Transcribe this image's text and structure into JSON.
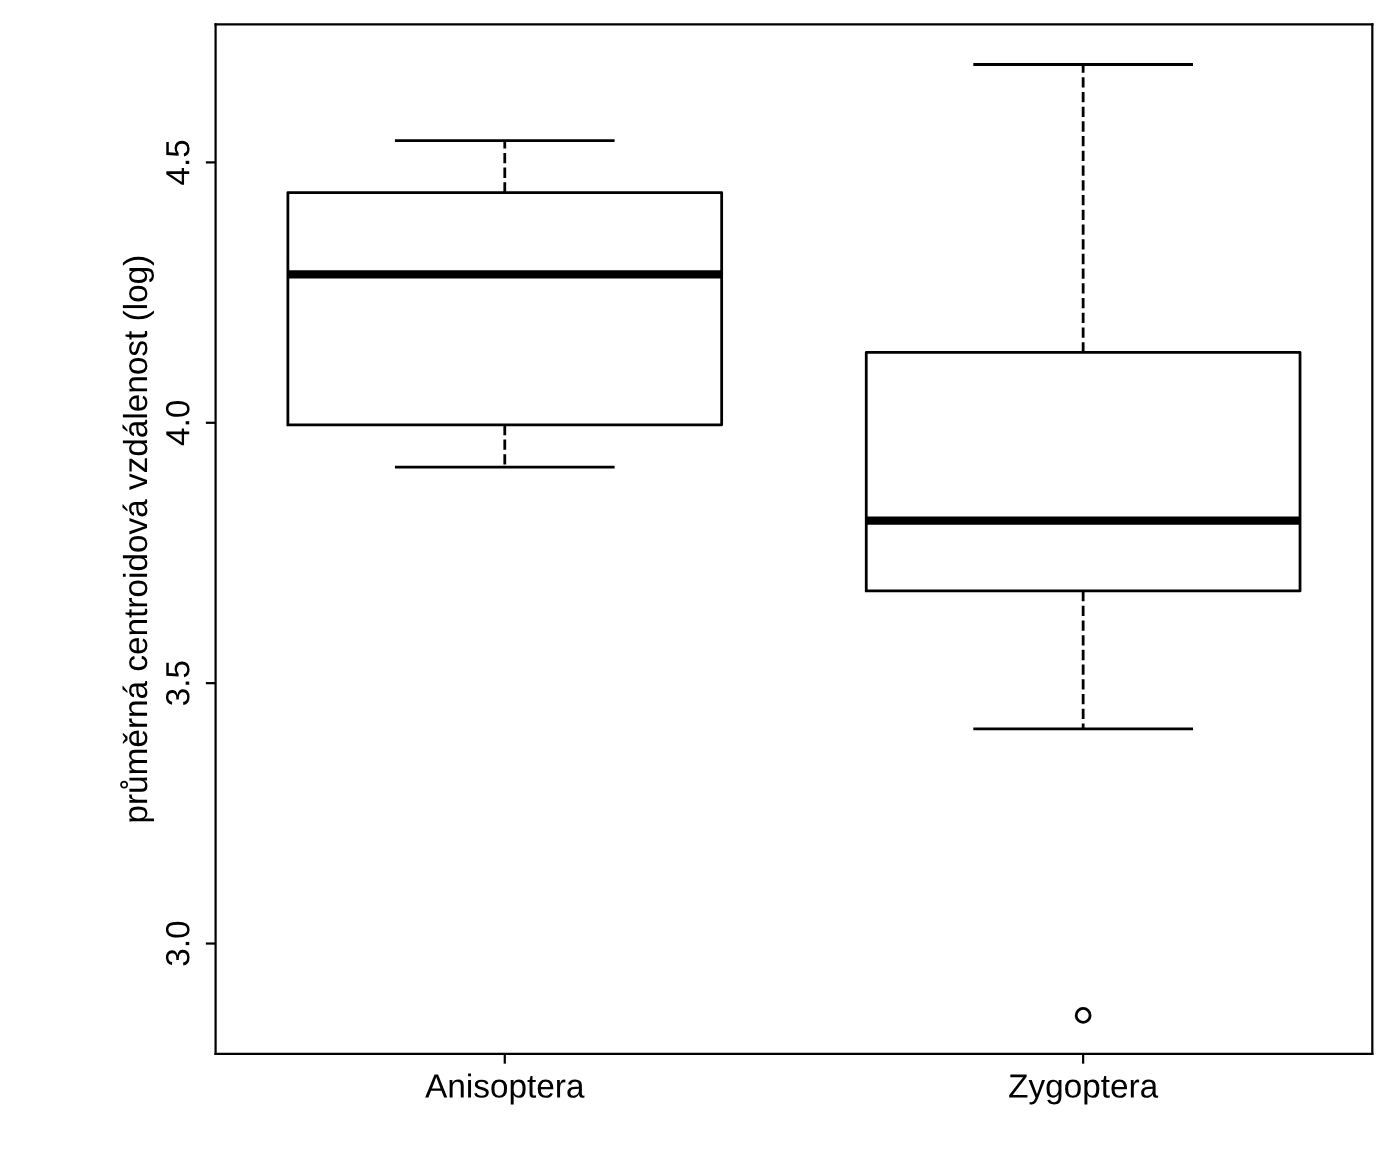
{
  "chart_data": {
    "type": "box",
    "ylabel": "průměrná centroidová vzdálenost (log)",
    "categories": [
      "Anisoptera",
      "Zygoptera"
    ],
    "boxes": [
      {
        "low": 3.915,
        "q1": 3.996,
        "median": 4.285,
        "q3": 4.442,
        "high": 4.542
      },
      {
        "low": 3.412,
        "q1": 3.677,
        "median": 3.812,
        "q3": 4.135,
        "high": 4.688,
        "outliers": [
          2.862
        ]
      }
    ],
    "ylim": [
      2.788,
      4.765
    ],
    "yticks": [
      {
        "value": 3.0,
        "label": "3.0"
      },
      {
        "value": 3.5,
        "label": "3.5"
      },
      {
        "value": 4.0,
        "label": "4.0"
      },
      {
        "value": 4.5,
        "label": "4.5"
      }
    ],
    "grid": false,
    "line_style": "dashed"
  }
}
